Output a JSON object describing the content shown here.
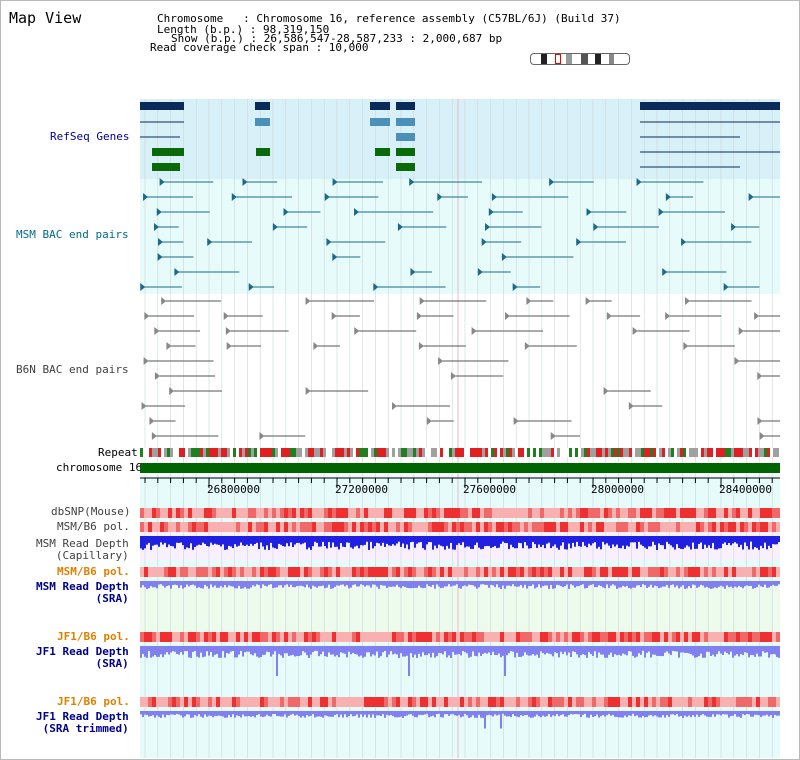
{
  "header": {
    "title": "Map View",
    "chromosome_line": "Chromosome   : Chromosome 16, reference assembly (C57BL/6J) (Build 37)",
    "length_line": "Length (b.p.) : 98,319,150",
    "show_line": "Show (b.p.) : 26,586,547-28,587,233 : 2,000,687 bp",
    "coverage_line": "Read coverage check span : 10,000"
  },
  "tracks": {
    "refseq": "RefSeq Genes",
    "msm_bac": "MSM BAC end pairs",
    "b6n_bac": "B6N BAC end pairs",
    "repeat": "Repeat",
    "chromosome": "chromosome 16",
    "dbsnp": "dbSNP(Mouse)",
    "msm_pol": "MSM/B6 pol.",
    "msm_depth_cap": "MSM Read Depth\n(Capillary)",
    "msm_pol_sra": "MSM/B6 pol.",
    "msm_depth_sra": "MSM Read Depth\n(SRA)",
    "jf1_pol": "JF1/B6 pol.",
    "jf1_depth_sra": "JF1 Read Depth\n(SRA)",
    "jf1_pol_trim": "JF1/B6 pol.",
    "jf1_depth_trim": "JF1 Read Depth\n(SRA trimmed)"
  },
  "axis": {
    "tick_labels": [
      "26800000",
      "27200000",
      "27600000",
      "28000000",
      "28400000"
    ]
  },
  "colors": {
    "refseq_label": "#00008b",
    "msm_label": "#006b8b",
    "b6n_label": "#404040",
    "sra_pol_label": "#e08000",
    "sra_depth_label": "#00008b",
    "refseq_bg": "#d8f0f8",
    "track_bg": "#e8fbfb",
    "chromosome_bar": "#006400",
    "msm_depth": "#2020e0",
    "sra_depth": "#8080f0"
  }
}
